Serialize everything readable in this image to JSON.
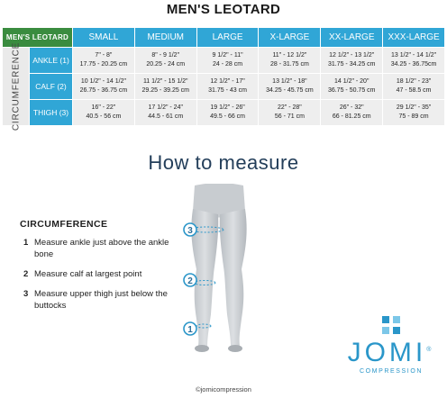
{
  "title": "MEN'S LEOTARD",
  "table": {
    "corner": "MEN'S LEOTARD",
    "columns": [
      "SMALL",
      "MEDIUM",
      "LARGE",
      "X-LARGE",
      "XX-LARGE",
      "XXX-LARGE"
    ],
    "side_label": "CIRCUMFERENCE",
    "rows": [
      {
        "label": "ANKLE (1)",
        "cells": [
          {
            "in": "7\" - 8\"",
            "cm": "17.75 - 20.25 cm"
          },
          {
            "in": "8\" - 9 1/2\"",
            "cm": "20.25 - 24 cm"
          },
          {
            "in": "9 1/2\" - 11\"",
            "cm": "24 - 28 cm"
          },
          {
            "in": "11\" - 12 1/2\"",
            "cm": "28 - 31.75 cm"
          },
          {
            "in": "12 1/2\" - 13 1/2\"",
            "cm": "31.75 - 34.25 cm"
          },
          {
            "in": "13 1/2\" - 14 1/2\"",
            "cm": "34.25 - 36.75cm"
          }
        ]
      },
      {
        "label": "CALF (2)",
        "cells": [
          {
            "in": "10 1/2\" - 14 1/2\"",
            "cm": "26.75 - 36.75 cm"
          },
          {
            "in": "11 1/2\" - 15 1/2\"",
            "cm": "29.25 - 39.25 cm"
          },
          {
            "in": "12 1/2\" - 17\"",
            "cm": "31.75 - 43 cm"
          },
          {
            "in": "13 1/2\" - 18\"",
            "cm": "34.25 - 45.75 cm"
          },
          {
            "in": "14 1/2\" - 20\"",
            "cm": "36.75 - 50.75 cm"
          },
          {
            "in": "18 1/2\" - 23\"",
            "cm": "47 - 58.5 cm"
          }
        ]
      },
      {
        "label": "THIGH (3)",
        "cells": [
          {
            "in": "16\" - 22\"",
            "cm": "40.5 - 56 cm"
          },
          {
            "in": "17 1/2\" - 24\"",
            "cm": "44.5 - 61 cm"
          },
          {
            "in": "19 1/2\" - 26\"",
            "cm": "49.5 - 66 cm"
          },
          {
            "in": "22\" - 28\"",
            "cm": "56 - 71 cm"
          },
          {
            "in": "26\" - 32\"",
            "cm": "66 - 81.25 cm"
          },
          {
            "in": "29 1/2\" - 35\"",
            "cm": "75 - 89 cm"
          }
        ]
      }
    ]
  },
  "how_to": {
    "heading": "How to measure",
    "section_title": "CIRCUMFERENCE",
    "steps": [
      {
        "num": "1",
        "text": "Measure ankle just above the ankle bone"
      },
      {
        "num": "2",
        "text": "Measure calf at largest point"
      },
      {
        "num": "3",
        "text": "Measure upper thigh just below the buttocks"
      }
    ],
    "markers": [
      "3",
      "2",
      "1"
    ]
  },
  "logo": {
    "word": "JOMI",
    "registered": "®",
    "sub": "COMPRESSION",
    "icon": "jomi-logo-mark"
  },
  "copyright": "©jomicompression",
  "colors": {
    "header_blue": "#30a6d6",
    "corner_green": "#3a8c3f",
    "cell_gray": "#eeeeee",
    "heading_navy": "#233e5a",
    "logo_blue": "#2a96c9"
  }
}
